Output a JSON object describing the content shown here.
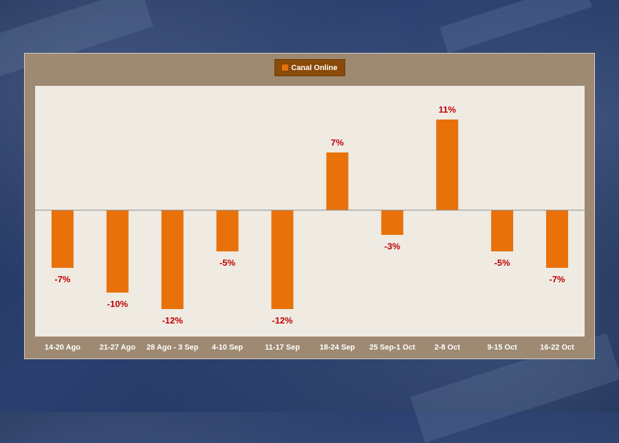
{
  "chart_data": {
    "type": "bar",
    "categories": [
      "14-20 Ago",
      "21-27 Ago",
      "28 Ago - 3 Sep",
      "4-10 Sep",
      "11-17 Sep",
      "18-24 Sep",
      "25 Sep-1 Oct",
      "2-8 Oct",
      "9-15 Oct",
      "16-22 Oct"
    ],
    "series": [
      {
        "name": "Canal Online",
        "values": [
          -7,
          -10,
          -12,
          -5,
          -12,
          7,
          -3,
          11,
          -5,
          -7
        ]
      }
    ],
    "data_labels": [
      "-7%",
      "-10%",
      "-12%",
      "-5%",
      "-12%",
      "7%",
      "-3%",
      "11%",
      "-5%",
      "-7%"
    ],
    "ylim": [
      -15,
      15
    ],
    "legend_position": "top-center",
    "grid": false,
    "colors": {
      "bar": "#e8710a",
      "data_label": "#c00000",
      "plot_bg": "#efebe3",
      "panel_bg": "#9e8a72",
      "legend_bg": "#8a4a08",
      "tick_label": "#ffffff"
    }
  }
}
